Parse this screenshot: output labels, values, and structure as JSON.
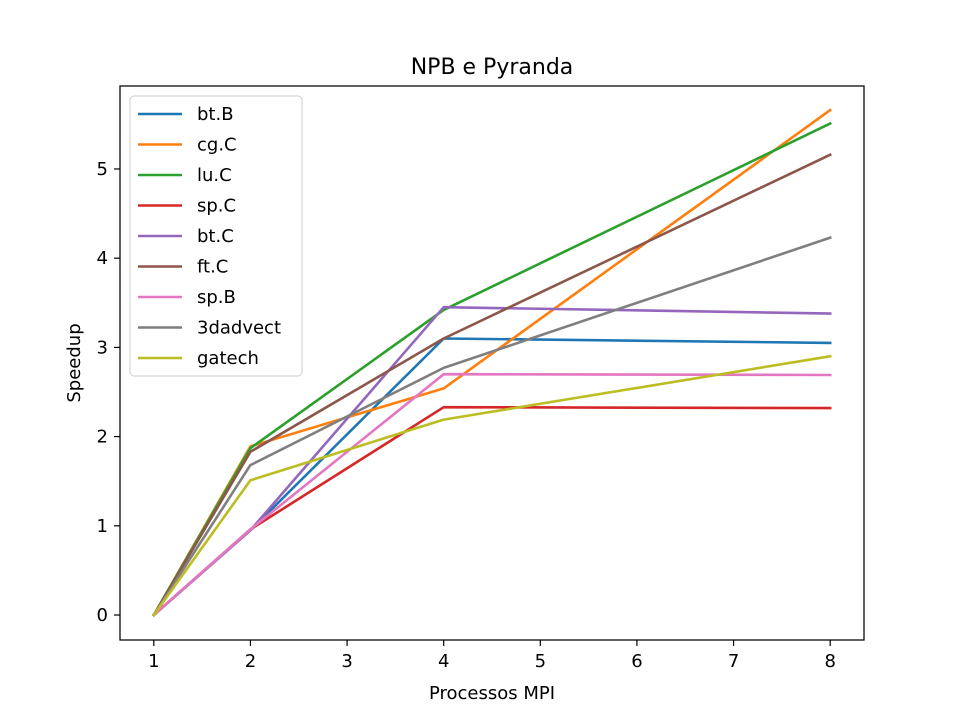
{
  "chart_data": {
    "type": "line",
    "title": "NPB e Pyranda",
    "xlabel": "Processos MPI",
    "ylabel": "Speedup",
    "x": [
      1,
      2,
      4,
      8
    ],
    "xticks": [
      1,
      2,
      3,
      4,
      5,
      6,
      7,
      8
    ],
    "xtick_labels": [
      "1",
      "2",
      "3",
      "4",
      "5",
      "6",
      "7",
      "8"
    ],
    "yticks": [
      0,
      1,
      2,
      3,
      4,
      5
    ],
    "ytick_labels": [
      "0",
      "1",
      "2",
      "3",
      "4",
      "5"
    ],
    "xlim": [
      0.65,
      8.35
    ],
    "ylim": [
      -0.28,
      5.93
    ],
    "grid": false,
    "legend_position": "top-left",
    "series": [
      {
        "name": "bt.B",
        "color": "#1f77b4",
        "values": [
          0,
          0.95,
          3.1,
          3.05
        ]
      },
      {
        "name": "cg.C",
        "color": "#ff7f0e",
        "values": [
          0,
          1.89,
          2.54,
          5.66
        ]
      },
      {
        "name": "lu.C",
        "color": "#2ca02c",
        "values": [
          0,
          1.87,
          3.42,
          5.51
        ]
      },
      {
        "name": "sp.C",
        "color": "#d62728",
        "values": [
          0,
          0.96,
          2.33,
          2.32
        ]
      },
      {
        "name": "bt.C",
        "color": "#9467bd",
        "values": [
          0,
          0.95,
          3.45,
          3.38
        ]
      },
      {
        "name": "ft.C",
        "color": "#8c564b",
        "values": [
          0,
          1.83,
          3.1,
          5.16
        ]
      },
      {
        "name": "sp.B",
        "color": "#e377c2",
        "values": [
          0,
          0.96,
          2.7,
          2.69
        ]
      },
      {
        "name": "3dadvect",
        "color": "#7f7f7f",
        "values": [
          0,
          1.68,
          2.77,
          4.23
        ]
      },
      {
        "name": "gatech",
        "color": "#bcbd22",
        "values": [
          0,
          1.51,
          2.19,
          2.9
        ]
      }
    ]
  }
}
